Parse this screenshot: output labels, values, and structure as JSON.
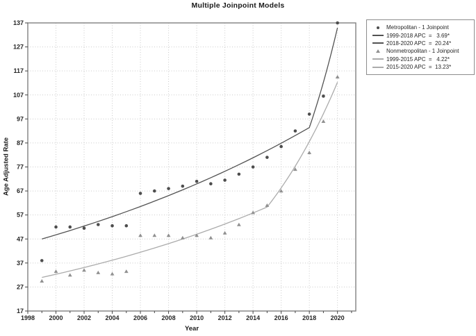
{
  "chart_data": {
    "type": "scatter",
    "subtype": "joinpoint-regression",
    "title": "Multiple Joinpoint Models",
    "xlabel": "Year",
    "ylabel": "Age Adjusted Rate",
    "xlim": [
      1998,
      2021.3
    ],
    "ylim": [
      17,
      137
    ],
    "x_major_ticks": [
      1998,
      2000,
      2002,
      2004,
      2006,
      2008,
      2010,
      2012,
      2014,
      2016,
      2018,
      2020
    ],
    "x_minor_tick_range": [
      1998,
      2021
    ],
    "y_ticks": [
      17,
      27,
      37,
      47,
      57,
      67,
      77,
      87,
      97,
      107,
      117,
      127,
      137
    ],
    "grid": "dotted",
    "legend_position": "outside-top-right",
    "colors": {
      "metropolitan": "#4d4d4d",
      "metropolitan_line": "#525252",
      "nonmetropolitan": "#909090",
      "nonmetropolitan_line": "#ababab",
      "grid": "#c9c9c9",
      "border": "#7f7f7f",
      "text": "#262626"
    },
    "series": [
      {
        "name": "Metropolitan - 1 Joinpoint",
        "marker": "circle",
        "color": "#4d4d4d",
        "x": [
          1999,
          2000,
          2001,
          2002,
          2003,
          2004,
          2005,
          2006,
          2007,
          2008,
          2009,
          2010,
          2011,
          2012,
          2013,
          2014,
          2015,
          2016,
          2017,
          2018,
          2019,
          2020
        ],
        "y": [
          38,
          52,
          52,
          51.5,
          53,
          52.5,
          52.5,
          66,
          67,
          68,
          69,
          71,
          70,
          71.5,
          74,
          77,
          81,
          85.5,
          92,
          99,
          106.5,
          137
        ]
      },
      {
        "name": "Nonmetropolitan - 1 Joinpoint",
        "marker": "triangle",
        "color": "#909090",
        "x": [
          1999,
          2000,
          2001,
          2002,
          2003,
          2004,
          2005,
          2006,
          2007,
          2008,
          2009,
          2010,
          2011,
          2012,
          2013,
          2014,
          2015,
          2016,
          2017,
          2018,
          2019,
          2020
        ],
        "y": [
          29.5,
          33.5,
          32,
          34,
          33,
          32.5,
          33.5,
          48.5,
          48.5,
          48.5,
          47.5,
          48.5,
          47.5,
          49.5,
          53,
          58,
          61,
          67,
          76,
          83,
          96,
          114.5
        ]
      }
    ],
    "fit_lines": [
      {
        "name": "Metropolitan joinpoint fit",
        "tone": "dark",
        "color": "#525252",
        "apc_segments": [
          {
            "period": "1999-2018",
            "apc": 3.69,
            "x0": 1999,
            "y0": 47,
            "x1": 2018,
            "y1": 93.4
          },
          {
            "period": "2018-2020",
            "apc": 20.24,
            "x0": 2018,
            "y0": 93.4,
            "x1": 2020,
            "y1": 135
          }
        ]
      },
      {
        "name": "Nonmetropolitan joinpoint fit",
        "tone": "light",
        "color": "#ababab",
        "apc_segments": [
          {
            "period": "1999-2015",
            "apc": 4.22,
            "x0": 1999,
            "y0": 31,
            "x1": 2015,
            "y1": 60.3
          },
          {
            "period": "2015-2020",
            "apc": 13.23,
            "x0": 2015,
            "y0": 60.3,
            "x1": 2020,
            "y1": 112.3
          }
        ]
      }
    ],
    "legend": {
      "entries": [
        {
          "type": "circle",
          "tone": "dark",
          "label": "Metropolitan - 1 Joinpoint"
        },
        {
          "type": "line",
          "tone": "dark",
          "label": "1999-2018 APC  =   3.69*"
        },
        {
          "type": "line",
          "tone": "dark",
          "label": "2018-2020 APC  =  20.24*"
        },
        {
          "type": "triangle",
          "tone": "light",
          "label": "Nonmetropolitan - 1 Joinpoint"
        },
        {
          "type": "line",
          "tone": "light",
          "label": "1999-2015 APC  =   4.22*"
        },
        {
          "type": "line",
          "tone": "light",
          "label": "2015-2020 APC  =  13.23*"
        }
      ]
    }
  }
}
